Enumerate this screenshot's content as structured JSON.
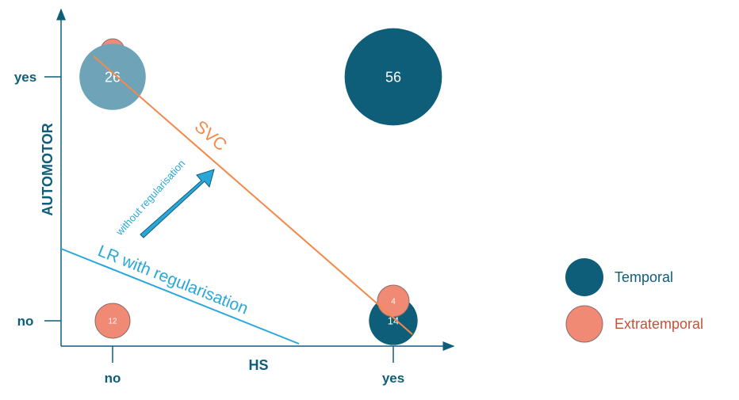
{
  "chart_data": {
    "type": "scatter",
    "xlabel": "HS",
    "ylabel": "AUTOMOTOR",
    "x_categories": [
      "no",
      "yes"
    ],
    "y_categories": [
      "no",
      "yes"
    ],
    "series": [
      {
        "name": "Temporal",
        "color": "#0e5e7a",
        "points": [
          {
            "x": "no",
            "y": "yes",
            "value": 26
          },
          {
            "x": "yes",
            "y": "yes",
            "value": 56
          },
          {
            "x": "yes",
            "y": "no",
            "value": 14
          }
        ]
      },
      {
        "name": "Extratemporal",
        "color": "#f08a74",
        "points": [
          {
            "x": "no",
            "y": "yes",
            "value": 2
          },
          {
            "x": "no",
            "y": "no",
            "value": 12
          },
          {
            "x": "yes",
            "y": "no",
            "value": 4
          }
        ]
      }
    ],
    "annotations": {
      "svc": "SVC",
      "lr_reg": "LR with regularisation",
      "lr_noreg": "without regularisation"
    },
    "legend_position": "right",
    "colors": {
      "temporal": "#0e5e7a",
      "temporal_light": "#6fa3b8",
      "extratemporal": "#f08a74",
      "extratemporal_text": "#c0533a",
      "svc_line": "#f5894a",
      "lr_line": "#2aa7d8",
      "axis": "#0e5e7a"
    }
  }
}
